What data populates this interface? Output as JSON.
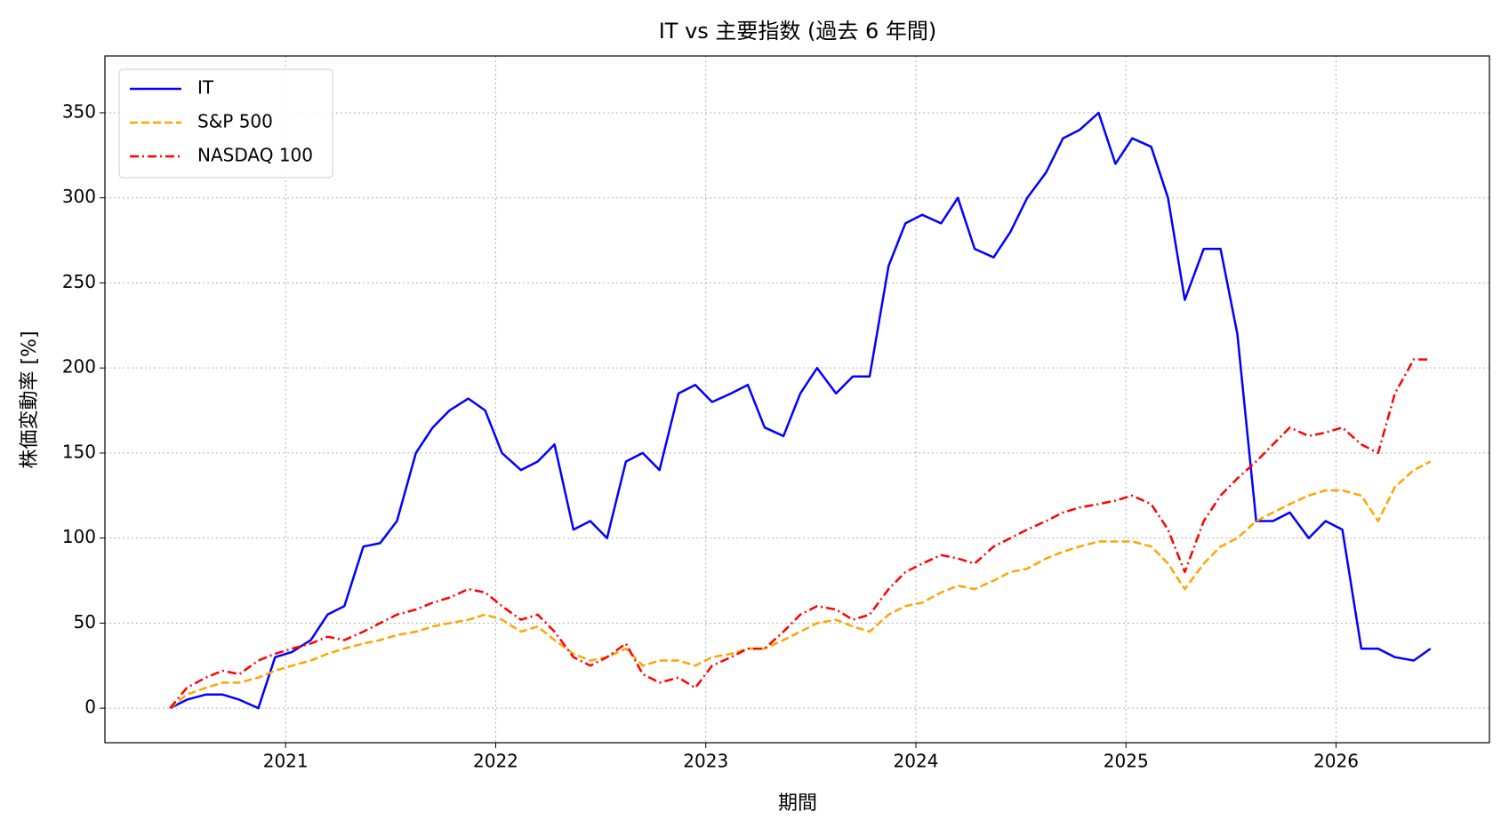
{
  "chart_data": {
    "type": "line",
    "title": "IT vs 主要指数 (過去 6 年間)",
    "xlabel": "期間",
    "ylabel": "株価変動率 [%]",
    "x": [
      2020.45,
      2020.53,
      2020.62,
      2020.7,
      2020.78,
      2020.87,
      2020.95,
      2021.03,
      2021.12,
      2021.2,
      2021.28,
      2021.37,
      2021.45,
      2021.53,
      2021.62,
      2021.7,
      2021.78,
      2021.87,
      2021.95,
      2022.03,
      2022.12,
      2022.2,
      2022.28,
      2022.37,
      2022.45,
      2022.53,
      2022.62,
      2022.7,
      2022.78,
      2022.87,
      2022.95,
      2023.03,
      2023.12,
      2023.2,
      2023.28,
      2023.37,
      2023.45,
      2023.53,
      2023.62,
      2023.7,
      2023.78,
      2023.87,
      2023.95,
      2024.03,
      2024.12,
      2024.2,
      2024.28,
      2024.37,
      2024.45,
      2024.53,
      2024.62,
      2024.7,
      2024.78,
      2024.87,
      2024.95,
      2025.03,
      2025.12,
      2025.2,
      2025.28,
      2025.37,
      2025.45,
      2025.53,
      2025.62,
      2025.7,
      2025.78,
      2025.87,
      2025.95,
      2026.03,
      2026.12,
      2026.2,
      2026.28,
      2026.37,
      2026.45
    ],
    "series": [
      {
        "name": "IT",
        "color": "#0000ff",
        "linestyle": "solid",
        "values": [
          0,
          5,
          8,
          8,
          5,
          0,
          30,
          33,
          40,
          55,
          60,
          95,
          97,
          110,
          150,
          165,
          175,
          182,
          175,
          150,
          140,
          145,
          155,
          105,
          110,
          100,
          145,
          150,
          140,
          185,
          190,
          180,
          185,
          190,
          165,
          160,
          185,
          200,
          185,
          195,
          195,
          260,
          285,
          290,
          285,
          300,
          270,
          265,
          280,
          300,
          315,
          335,
          340,
          350,
          320,
          335,
          330,
          300,
          240,
          270,
          270,
          220,
          110,
          110,
          115,
          100,
          110,
          105,
          35,
          35,
          30,
          28,
          35
        ]
      },
      {
        "name": "S&P 500",
        "color": "#ffa500",
        "linestyle": "dashed",
        "values": [
          0,
          8,
          12,
          15,
          15,
          18,
          22,
          25,
          28,
          32,
          35,
          38,
          40,
          43,
          45,
          48,
          50,
          52,
          55,
          52,
          45,
          48,
          40,
          32,
          28,
          30,
          35,
          25,
          28,
          28,
          25,
          30,
          32,
          35,
          35,
          40,
          45,
          50,
          52,
          48,
          45,
          55,
          60,
          62,
          68,
          72,
          70,
          75,
          80,
          82,
          88,
          92,
          95,
          98,
          98,
          98,
          95,
          85,
          70,
          85,
          95,
          100,
          110,
          115,
          120,
          125,
          128,
          128,
          125,
          110,
          130,
          140,
          145
        ]
      },
      {
        "name": "NASDAQ 100",
        "color": "#ff0000",
        "linestyle": "dashdot",
        "values": [
          0,
          12,
          18,
          22,
          20,
          28,
          32,
          35,
          38,
          42,
          40,
          45,
          50,
          55,
          58,
          62,
          65,
          70,
          68,
          60,
          52,
          55,
          45,
          30,
          25,
          30,
          38,
          20,
          15,
          18,
          12,
          25,
          30,
          35,
          35,
          45,
          55,
          60,
          58,
          52,
          55,
          70,
          80,
          85,
          90,
          88,
          85,
          95,
          100,
          105,
          110,
          115,
          118,
          120,
          122,
          125,
          120,
          105,
          80,
          110,
          125,
          135,
          145,
          155,
          165,
          160,
          162,
          165,
          155,
          150,
          185,
          205,
          205
        ]
      }
    ],
    "xlim": [
      2020.14,
      2026.73
    ],
    "xticks": [
      2021,
      2022,
      2023,
      2024,
      2025,
      2026
    ],
    "ylim": [
      -20.3,
      383.4
    ],
    "yticks": [
      0,
      50,
      100,
      150,
      200,
      250,
      300,
      350
    ],
    "grid": true,
    "legend": "upper left"
  }
}
